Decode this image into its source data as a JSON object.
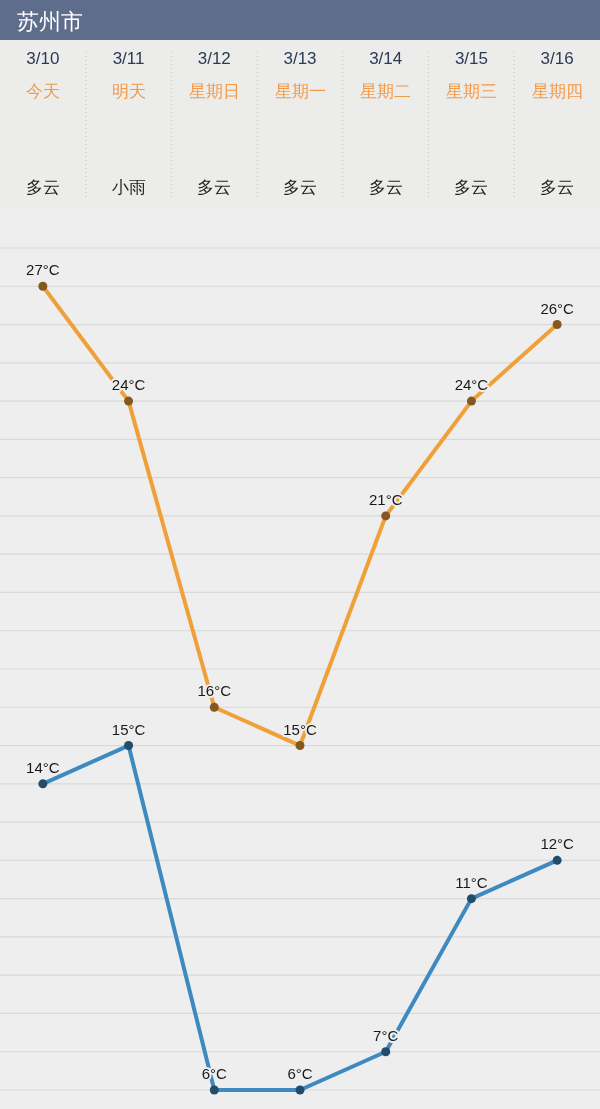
{
  "chart_data": {
    "type": "line",
    "title": "苏州市",
    "categories": [
      "3/10",
      "3/11",
      "3/12",
      "3/13",
      "3/14",
      "3/15",
      "3/16"
    ],
    "annotations": [
      "今天",
      "明天",
      "星期日",
      "星期一",
      "星期二",
      "星期三",
      "星期四",
      "多云",
      "小雨",
      "多云",
      "多云",
      "多云",
      "多云",
      "多云"
    ],
    "series": [
      {
        "color": "#f0a038",
        "values": [
          27,
          24,
          16,
          15,
          21,
          24,
          26
        ],
        "value_labels": [
          "27°C",
          "24°C",
          "16°C",
          "15°C",
          "21°C",
          "24°C",
          "26°C"
        ]
      },
      {
        "color": "#3d8ac0",
        "values": [
          14,
          15,
          6,
          6,
          7,
          11,
          12
        ],
        "value_labels": [
          "14°C",
          "15°C",
          "6°C",
          "6°C",
          "7°C",
          "11°C",
          "12°C"
        ]
      }
    ],
    "yticks": [
      {
        "value": 6,
        "label": null
      },
      {
        "value": 7,
        "label": null
      },
      {
        "value": 8,
        "label": null
      },
      {
        "value": 9,
        "label": null
      },
      {
        "value": 10,
        "label": null
      },
      {
        "value": 11,
        "label": null
      },
      {
        "value": 12,
        "label": null
      },
      {
        "value": 13,
        "label": null
      },
      {
        "value": 14,
        "label": null
      },
      {
        "value": 15,
        "label": null
      },
      {
        "value": 16,
        "label": null
      },
      {
        "value": 17,
        "label": null
      },
      {
        "value": 18,
        "label": null
      },
      {
        "value": 19,
        "label": null
      },
      {
        "value": 20,
        "label": null
      },
      {
        "value": 21,
        "label": null
      },
      {
        "value": 22,
        "label": null
      },
      {
        "value": 23,
        "label": null
      },
      {
        "value": 24,
        "label": null
      },
      {
        "value": 25,
        "label": null
      },
      {
        "value": 26,
        "label": null
      },
      {
        "value": 27,
        "label": null
      },
      {
        "value": 28,
        "label": null
      }
    ],
    "grid": "y",
    "tick_labels": "x",
    "marker": "circle"
  }
}
